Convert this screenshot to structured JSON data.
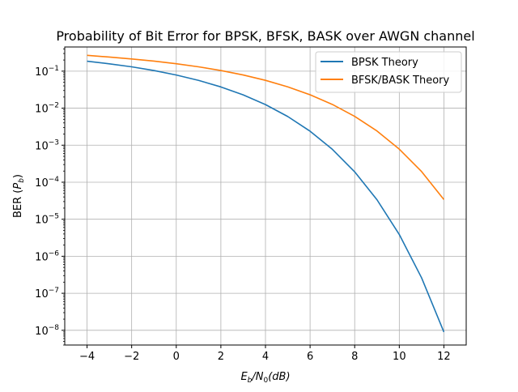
{
  "chart_data": {
    "type": "line",
    "title": "Probability of Bit Error for BPSK, BFSK, BASK over AWGN channel",
    "xlabel": {
      "main": "E",
      "sub_b": "b",
      "slash": "/N",
      "sub_0": "0",
      "unit": "(dB)"
    },
    "ylabel": {
      "main": "BER (",
      "italic": "P",
      "sub": "b",
      "close": ")"
    },
    "x_ticks": [
      -4,
      -2,
      0,
      2,
      4,
      6,
      8,
      10,
      12
    ],
    "x_tick_labels": [
      "−4",
      "−2",
      "0",
      "2",
      "4",
      "6",
      "8",
      "10",
      "12"
    ],
    "y_ticks_exp": [
      -8,
      -7,
      -6,
      -5,
      -4,
      -3,
      -2,
      -1
    ],
    "y_tick_base": "10",
    "y_tick_exp_labels": [
      "−8",
      "−7",
      "−6",
      "−5",
      "−4",
      "−3",
      "−2",
      "−1"
    ],
    "xlim": [
      -5,
      13
    ],
    "ylim": [
      4e-09,
      0.45
    ],
    "yscale": "log",
    "grid": true,
    "legend_position": "top-right",
    "x": [
      -4,
      -3,
      -2,
      -1,
      0,
      1,
      2,
      3,
      4,
      5,
      6,
      7,
      8,
      9,
      10,
      11,
      12
    ],
    "series": [
      {
        "name": "BPSK Theory",
        "color": "#1f77b4",
        "values": [
          0.186,
          0.158,
          0.131,
          0.104,
          0.0786,
          0.0563,
          0.0375,
          0.0229,
          0.0125,
          0.00595,
          0.00239,
          0.000773,
          0.000191,
          3.36e-05,
          3.87e-06,
          2.61e-07,
          9e-09
        ]
      },
      {
        "name": "BFSK/BASK Theory",
        "color": "#ff7f0e",
        "values": [
          0.267,
          0.24,
          0.213,
          0.187,
          0.159,
          0.131,
          0.104,
          0.0789,
          0.0565,
          0.0377,
          0.023,
          0.0126,
          0.006,
          0.00242,
          0.000783,
          0.000194,
          3.4e-05
        ]
      }
    ]
  }
}
